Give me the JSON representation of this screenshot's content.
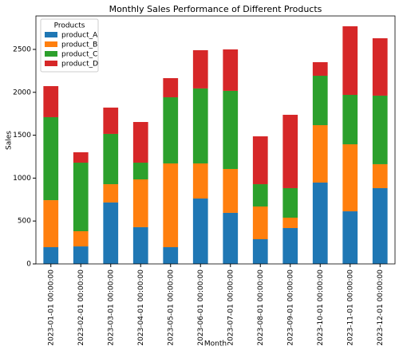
{
  "chart_data": {
    "type": "stacked_bar",
    "title": "Monthly Sales Performance of Different Products",
    "x_label": "Month",
    "y_label": "Sales",
    "legend_title": "Products",
    "legend": "upper left",
    "categories": [
      "2023-01-01 00:00:00",
      "2023-02-01 00:00:00",
      "2023-03-01 00:00:00",
      "2023-04-01 00:00:00",
      "2023-05-01 00:00:00",
      "2023-06-01 00:00:00",
      "2023-07-01 00:00:00",
      "2023-08-01 00:00:00",
      "2023-09-01 00:00:00",
      "2023-10-01 00:00:00",
      "2023-11-01 00:00:00",
      "2023-12-01 00:00:00"
    ],
    "series": [
      {
        "name": "product_A",
        "color": "#1f77b4",
        "values": [
          195,
          204,
          716,
          428,
          195,
          762,
          595,
          288,
          418,
          948,
          613,
          883
        ]
      },
      {
        "name": "product_B",
        "color": "#ff7f0e",
        "values": [
          548,
          177,
          213,
          557,
          976,
          409,
          511,
          381,
          121,
          669,
          781,
          279
        ]
      },
      {
        "name": "product_C",
        "color": "#2ca02c",
        "values": [
          967,
          799,
          586,
          195,
          771,
          874,
          911,
          260,
          344,
          576,
          576,
          799
        ]
      },
      {
        "name": "product_D",
        "color": "#d62728",
        "values": [
          362,
          121,
          307,
          474,
          223,
          446,
          483,
          558,
          855,
          158,
          800,
          669
        ]
      }
    ],
    "ylim": [
      0,
      2890
    ],
    "yticks": [
      0,
      500,
      1000,
      1500,
      2000,
      2500
    ]
  }
}
